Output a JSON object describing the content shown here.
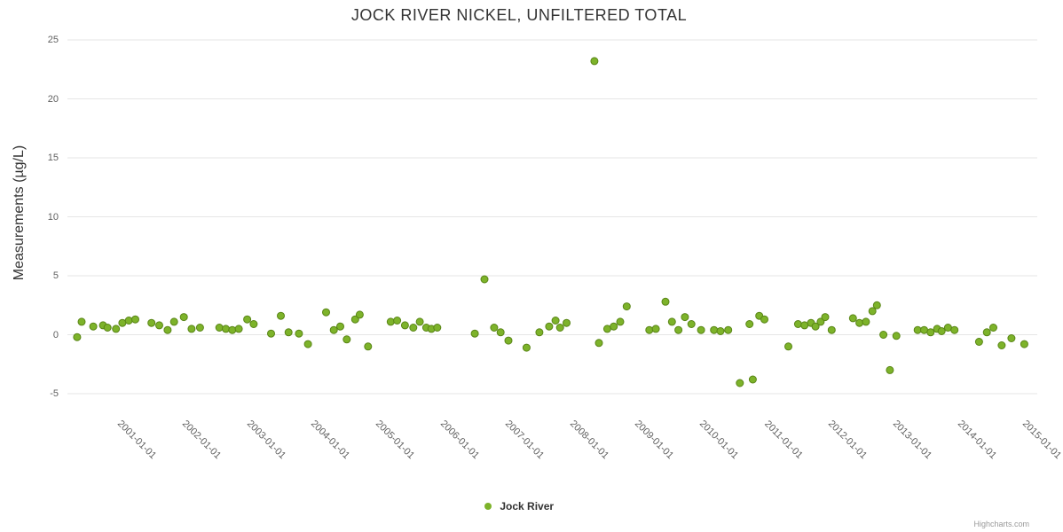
{
  "title": "JOCK RIVER NICKEL, UNFILTERED TOTAL",
  "y_axis": {
    "label": "Measurements (µg/L)",
    "ticks": [
      -5,
      0,
      5,
      10,
      15,
      20,
      25
    ]
  },
  "x_axis": {
    "tick_values": [
      2001,
      2002,
      2003,
      2004,
      2005,
      2006,
      2007,
      2008,
      2009,
      2010,
      2011,
      2012,
      2013,
      2014,
      2015
    ],
    "tick_labels": [
      "2001-01-01",
      "2002-01-01",
      "2003-01-01",
      "2004-01-01",
      "2005-01-01",
      "2006-01-01",
      "2007-01-01",
      "2008-01-01",
      "2009-01-01",
      "2010-01-01",
      "2011-01-01",
      "2012-01-01",
      "2013-01-01",
      "2014-01-01",
      "2015-01-01"
    ]
  },
  "legend": {
    "label": "Jock River",
    "marker_color": "#7db32a"
  },
  "credits": "Highcharts.com",
  "colors": {
    "point_fill": "#7db32a",
    "point_stroke": "#598516",
    "gridline": "#e6e6e6",
    "title_text": "#333333",
    "axis_label": "#606060"
  },
  "chart_data": {
    "type": "scatter",
    "title": "JOCK RIVER NICKEL, UNFILTERED TOTAL",
    "xlabel": "",
    "ylabel": "Measurements (µg/L)",
    "x_unit": "decimal_year",
    "xlim": [
      2000,
      2015
    ],
    "ylim": [
      -5,
      25
    ],
    "grid": "horizontal",
    "legend_position": "bottom",
    "series": [
      {
        "name": "Jock River",
        "color": "#7db32a",
        "points": [
          [
            2000.15,
            -0.2
          ],
          [
            2000.22,
            1.1
          ],
          [
            2000.4,
            0.7
          ],
          [
            2000.55,
            0.8
          ],
          [
            2000.62,
            0.6
          ],
          [
            2000.75,
            0.5
          ],
          [
            2000.85,
            1.0
          ],
          [
            2000.95,
            1.2
          ],
          [
            2001.05,
            1.3
          ],
          [
            2001.3,
            1.0
          ],
          [
            2001.42,
            0.8
          ],
          [
            2001.55,
            0.4
          ],
          [
            2001.65,
            1.1
          ],
          [
            2001.8,
            1.5
          ],
          [
            2001.92,
            0.5
          ],
          [
            2002.05,
            0.6
          ],
          [
            2002.35,
            0.6
          ],
          [
            2002.45,
            0.5
          ],
          [
            2002.55,
            0.4
          ],
          [
            2002.65,
            0.5
          ],
          [
            2002.78,
            1.3
          ],
          [
            2002.88,
            0.9
          ],
          [
            2003.15,
            0.1
          ],
          [
            2003.3,
            1.6
          ],
          [
            2003.42,
            0.2
          ],
          [
            2003.58,
            0.1
          ],
          [
            2003.72,
            -0.8
          ],
          [
            2004.0,
            1.9
          ],
          [
            2004.12,
            0.4
          ],
          [
            2004.22,
            0.7
          ],
          [
            2004.32,
            -0.4
          ],
          [
            2004.45,
            1.3
          ],
          [
            2004.52,
            1.7
          ],
          [
            2004.65,
            -1.0
          ],
          [
            2005.0,
            1.1
          ],
          [
            2005.1,
            1.2
          ],
          [
            2005.22,
            0.8
          ],
          [
            2005.35,
            0.6
          ],
          [
            2005.45,
            1.1
          ],
          [
            2005.55,
            0.6
          ],
          [
            2005.63,
            0.5
          ],
          [
            2005.72,
            0.6
          ],
          [
            2006.3,
            0.1
          ],
          [
            2006.45,
            4.7
          ],
          [
            2006.6,
            0.6
          ],
          [
            2006.7,
            0.2
          ],
          [
            2006.82,
            -0.5
          ],
          [
            2007.1,
            -1.1
          ],
          [
            2007.3,
            0.2
          ],
          [
            2007.45,
            0.7
          ],
          [
            2007.55,
            1.2
          ],
          [
            2007.62,
            0.6
          ],
          [
            2007.72,
            1.0
          ],
          [
            2008.15,
            23.2
          ],
          [
            2008.22,
            -0.7
          ],
          [
            2008.35,
            0.5
          ],
          [
            2008.45,
            0.7
          ],
          [
            2008.55,
            1.1
          ],
          [
            2008.65,
            2.4
          ],
          [
            2009.0,
            0.4
          ],
          [
            2009.1,
            0.5
          ],
          [
            2009.25,
            2.8
          ],
          [
            2009.35,
            1.1
          ],
          [
            2009.45,
            0.4
          ],
          [
            2009.55,
            1.5
          ],
          [
            2009.65,
            0.9
          ],
          [
            2009.8,
            0.4
          ],
          [
            2010.0,
            0.4
          ],
          [
            2010.1,
            0.3
          ],
          [
            2010.22,
            0.4
          ],
          [
            2010.4,
            -4.1
          ],
          [
            2010.55,
            0.9
          ],
          [
            2010.6,
            -3.8
          ],
          [
            2010.7,
            1.6
          ],
          [
            2010.78,
            1.3
          ],
          [
            2011.15,
            -1.0
          ],
          [
            2011.3,
            0.9
          ],
          [
            2011.4,
            0.8
          ],
          [
            2011.5,
            1.0
          ],
          [
            2011.57,
            0.7
          ],
          [
            2011.65,
            1.1
          ],
          [
            2011.72,
            1.5
          ],
          [
            2011.82,
            0.4
          ],
          [
            2012.15,
            1.4
          ],
          [
            2012.25,
            1.0
          ],
          [
            2012.35,
            1.1
          ],
          [
            2012.45,
            2.0
          ],
          [
            2012.52,
            2.5
          ],
          [
            2012.62,
            0.0
          ],
          [
            2012.72,
            -3.0
          ],
          [
            2012.82,
            -0.1
          ],
          [
            2013.15,
            0.4
          ],
          [
            2013.25,
            0.4
          ],
          [
            2013.35,
            0.2
          ],
          [
            2013.45,
            0.5
          ],
          [
            2013.52,
            0.3
          ],
          [
            2013.62,
            0.6
          ],
          [
            2013.72,
            0.4
          ],
          [
            2014.1,
            -0.6
          ],
          [
            2014.22,
            0.2
          ],
          [
            2014.32,
            0.6
          ],
          [
            2014.45,
            -0.9
          ],
          [
            2014.6,
            -0.3
          ],
          [
            2014.8,
            -0.8
          ]
        ]
      }
    ]
  }
}
